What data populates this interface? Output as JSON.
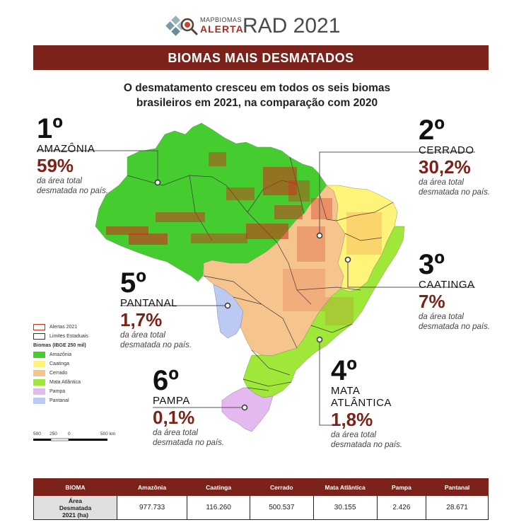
{
  "header": {
    "logo_small": "MAPBIOMAS",
    "logo_big": "ALERTA",
    "report_title": "RAD 2021"
  },
  "banner": "BIOMAS MAIS DESMATADOS",
  "subtitle": "O desmatamento cresceu em todos os seis biomas brasileiros em 2021, na comparação com 2020",
  "ranking": [
    {
      "rank": "1º",
      "biome": "AMAZÔNIA",
      "percent": "59%",
      "note1": "da área total",
      "note2": "desmatada no país."
    },
    {
      "rank": "2º",
      "biome": "CERRADO",
      "percent": "30,2%",
      "note1": "da área total",
      "note2": "desmatada no país."
    },
    {
      "rank": "3º",
      "biome": "CAATINGA",
      "percent": "7%",
      "note1": "da área total",
      "note2": "desmatada no país."
    },
    {
      "rank": "4º",
      "biome": "MATA ATLÂNTICA",
      "biome_line1": "MATA",
      "biome_line2": "ATLÂNTICA",
      "percent": "1,8%",
      "note1": "da área total",
      "note2": "desmatada no país."
    },
    {
      "rank": "5º",
      "biome": "PANTANAL",
      "percent": "1,7%",
      "note1": "da área total",
      "note2": "desmatada no país."
    },
    {
      "rank": "6º",
      "biome": "PAMPA",
      "percent": "0,1%",
      "note1": "da área total",
      "note2": "desmatada no país."
    }
  ],
  "legend": {
    "alerts": "Alertas 2021",
    "limits": "Limites Estaduais",
    "biomes_title": "Biomas (IBGE 250 mil)",
    "items": [
      {
        "label": "Amazônia",
        "color": "#45cc2e"
      },
      {
        "label": "Caatinga",
        "color": "#fff47a"
      },
      {
        "label": "Cerrado",
        "color": "#f6c58e"
      },
      {
        "label": "Mata Atlântica",
        "color": "#9fe83a"
      },
      {
        "label": "Pampa",
        "color": "#e4b9f0"
      },
      {
        "label": "Pantanal",
        "color": "#bcc9f2"
      }
    ],
    "alert_color": "#d42a1a"
  },
  "scale_bar": {
    "labels": [
      "500",
      "250",
      "0",
      "500 km"
    ]
  },
  "table": {
    "headers": [
      "BIOMA",
      "Amazônia",
      "Caatinga",
      "Cerrado",
      "Mata Atlântica",
      "Pampa",
      "Pantanal"
    ],
    "row_label_line1": "Área",
    "row_label_line2": "Desmatada",
    "row_label_line3": "2021 (ha)",
    "values": [
      "977.733",
      "116.260",
      "500.537",
      "30.155",
      "2.426",
      "28.671"
    ]
  },
  "colors": {
    "brand": "#7b221b",
    "accent": "#b12a1f"
  }
}
